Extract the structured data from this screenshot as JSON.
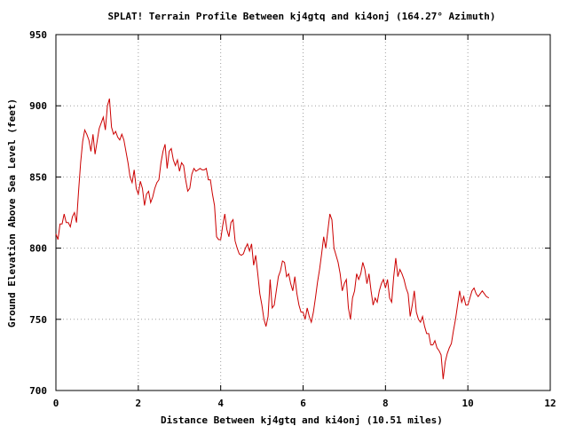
{
  "chart_data": {
    "type": "line",
    "title": "SPLAT! Terrain Profile Between kj4gtq and ki4onj (164.27° Azimuth)",
    "xlabel": "Distance Between kj4gtq and ki4onj (10.51 miles)",
    "ylabel": "Ground Elevation Above Sea Level (feet)",
    "xlim": [
      0,
      12
    ],
    "ylim": [
      700,
      950
    ],
    "x_ticks": [
      0,
      2,
      4,
      6,
      8,
      10,
      12
    ],
    "y_ticks": [
      700,
      750,
      800,
      850,
      900,
      950
    ],
    "grid": true,
    "series": [
      {
        "color": "#cc0000",
        "points": [
          [
            0.0,
            810
          ],
          [
            0.05,
            806
          ],
          [
            0.1,
            817
          ],
          [
            0.15,
            817
          ],
          [
            0.2,
            824
          ],
          [
            0.25,
            818
          ],
          [
            0.3,
            818
          ],
          [
            0.35,
            815
          ],
          [
            0.4,
            822
          ],
          [
            0.45,
            825
          ],
          [
            0.5,
            818
          ],
          [
            0.55,
            840
          ],
          [
            0.6,
            860
          ],
          [
            0.65,
            875
          ],
          [
            0.7,
            883
          ],
          [
            0.75,
            880
          ],
          [
            0.8,
            876
          ],
          [
            0.85,
            868
          ],
          [
            0.9,
            880
          ],
          [
            0.95,
            866
          ],
          [
            1.0,
            875
          ],
          [
            1.05,
            884
          ],
          [
            1.1,
            888
          ],
          [
            1.15,
            892
          ],
          [
            1.2,
            883
          ],
          [
            1.25,
            900
          ],
          [
            1.3,
            905
          ],
          [
            1.35,
            885
          ],
          [
            1.4,
            880
          ],
          [
            1.45,
            882
          ],
          [
            1.5,
            878
          ],
          [
            1.55,
            876
          ],
          [
            1.6,
            880
          ],
          [
            1.65,
            876
          ],
          [
            1.7,
            868
          ],
          [
            1.75,
            860
          ],
          [
            1.8,
            850
          ],
          [
            1.85,
            846
          ],
          [
            1.9,
            855
          ],
          [
            1.95,
            842
          ],
          [
            2.0,
            838
          ],
          [
            2.05,
            847
          ],
          [
            2.1,
            842
          ],
          [
            2.15,
            830
          ],
          [
            2.2,
            838
          ],
          [
            2.25,
            840
          ],
          [
            2.3,
            832
          ],
          [
            2.35,
            836
          ],
          [
            2.4,
            842
          ],
          [
            2.45,
            846
          ],
          [
            2.5,
            848
          ],
          [
            2.55,
            860
          ],
          [
            2.6,
            868
          ],
          [
            2.65,
            873
          ],
          [
            2.7,
            856
          ],
          [
            2.75,
            868
          ],
          [
            2.8,
            870
          ],
          [
            2.85,
            862
          ],
          [
            2.9,
            858
          ],
          [
            2.95,
            862
          ],
          [
            3.0,
            854
          ],
          [
            3.05,
            860
          ],
          [
            3.1,
            858
          ],
          [
            3.15,
            848
          ],
          [
            3.2,
            840
          ],
          [
            3.25,
            842
          ],
          [
            3.3,
            852
          ],
          [
            3.35,
            856
          ],
          [
            3.4,
            854
          ],
          [
            3.45,
            855
          ],
          [
            3.5,
            856
          ],
          [
            3.55,
            855
          ],
          [
            3.6,
            855
          ],
          [
            3.65,
            856
          ],
          [
            3.7,
            848
          ],
          [
            3.75,
            848
          ],
          [
            3.8,
            838
          ],
          [
            3.85,
            830
          ],
          [
            3.9,
            808
          ],
          [
            3.95,
            806
          ],
          [
            4.0,
            806
          ],
          [
            4.05,
            816
          ],
          [
            4.1,
            824
          ],
          [
            4.15,
            813
          ],
          [
            4.2,
            808
          ],
          [
            4.25,
            818
          ],
          [
            4.3,
            820
          ],
          [
            4.35,
            805
          ],
          [
            4.4,
            800
          ],
          [
            4.45,
            796
          ],
          [
            4.5,
            795
          ],
          [
            4.55,
            796
          ],
          [
            4.6,
            800
          ],
          [
            4.65,
            803
          ],
          [
            4.7,
            798
          ],
          [
            4.75,
            803
          ],
          [
            4.8,
            788
          ],
          [
            4.85,
            795
          ],
          [
            4.9,
            782
          ],
          [
            4.95,
            768
          ],
          [
            5.0,
            760
          ],
          [
            5.05,
            750
          ],
          [
            5.1,
            745
          ],
          [
            5.15,
            752
          ],
          [
            5.2,
            778
          ],
          [
            5.25,
            758
          ],
          [
            5.3,
            760
          ],
          [
            5.35,
            770
          ],
          [
            5.4,
            780
          ],
          [
            5.45,
            784
          ],
          [
            5.5,
            791
          ],
          [
            5.55,
            790
          ],
          [
            5.6,
            780
          ],
          [
            5.65,
            782
          ],
          [
            5.7,
            775
          ],
          [
            5.75,
            770
          ],
          [
            5.8,
            780
          ],
          [
            5.85,
            768
          ],
          [
            5.9,
            760
          ],
          [
            5.95,
            755
          ],
          [
            6.0,
            755
          ],
          [
            6.05,
            750
          ],
          [
            6.1,
            758
          ],
          [
            6.15,
            752
          ],
          [
            6.2,
            748
          ],
          [
            6.25,
            755
          ],
          [
            6.3,
            765
          ],
          [
            6.35,
            776
          ],
          [
            6.4,
            785
          ],
          [
            6.45,
            796
          ],
          [
            6.5,
            808
          ],
          [
            6.55,
            800
          ],
          [
            6.6,
            812
          ],
          [
            6.65,
            824
          ],
          [
            6.7,
            820
          ],
          [
            6.75,
            800
          ],
          [
            6.8,
            795
          ],
          [
            6.85,
            790
          ],
          [
            6.9,
            782
          ],
          [
            6.95,
            770
          ],
          [
            7.0,
            775
          ],
          [
            7.05,
            778
          ],
          [
            7.1,
            758
          ],
          [
            7.15,
            750
          ],
          [
            7.2,
            765
          ],
          [
            7.25,
            770
          ],
          [
            7.3,
            782
          ],
          [
            7.35,
            778
          ],
          [
            7.4,
            782
          ],
          [
            7.45,
            790
          ],
          [
            7.5,
            785
          ],
          [
            7.55,
            775
          ],
          [
            7.6,
            782
          ],
          [
            7.65,
            770
          ],
          [
            7.7,
            760
          ],
          [
            7.75,
            765
          ],
          [
            7.8,
            762
          ],
          [
            7.85,
            770
          ],
          [
            7.9,
            775
          ],
          [
            7.95,
            778
          ],
          [
            8.0,
            772
          ],
          [
            8.05,
            778
          ],
          [
            8.1,
            765
          ],
          [
            8.15,
            762
          ],
          [
            8.2,
            780
          ],
          [
            8.25,
            793
          ],
          [
            8.3,
            780
          ],
          [
            8.35,
            785
          ],
          [
            8.4,
            782
          ],
          [
            8.45,
            778
          ],
          [
            8.5,
            772
          ],
          [
            8.55,
            768
          ],
          [
            8.6,
            752
          ],
          [
            8.65,
            760
          ],
          [
            8.7,
            770
          ],
          [
            8.75,
            755
          ],
          [
            8.8,
            750
          ],
          [
            8.85,
            748
          ],
          [
            8.9,
            752
          ],
          [
            8.95,
            745
          ],
          [
            9.0,
            740
          ],
          [
            9.05,
            740
          ],
          [
            9.1,
            732
          ],
          [
            9.15,
            732
          ],
          [
            9.2,
            735
          ],
          [
            9.25,
            730
          ],
          [
            9.3,
            728
          ],
          [
            9.35,
            725
          ],
          [
            9.4,
            708
          ],
          [
            9.45,
            720
          ],
          [
            9.5,
            726
          ],
          [
            9.55,
            730
          ],
          [
            9.6,
            733
          ],
          [
            9.65,
            742
          ],
          [
            9.7,
            750
          ],
          [
            9.75,
            760
          ],
          [
            9.8,
            770
          ],
          [
            9.85,
            762
          ],
          [
            9.9,
            766
          ],
          [
            9.95,
            760
          ],
          [
            10.0,
            760
          ],
          [
            10.05,
            765
          ],
          [
            10.1,
            770
          ],
          [
            10.15,
            772
          ],
          [
            10.2,
            768
          ],
          [
            10.25,
            766
          ],
          [
            10.3,
            768
          ],
          [
            10.35,
            770
          ],
          [
            10.4,
            768
          ],
          [
            10.45,
            766
          ],
          [
            10.51,
            765
          ]
        ]
      }
    ]
  }
}
